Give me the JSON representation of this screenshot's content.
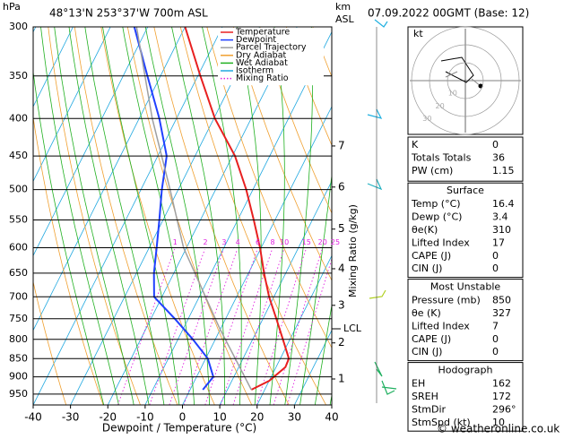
{
  "header": {
    "location": "48°13'N  253°37'W  700m  ASL",
    "date": "07.09.2022  00GMT  (Base: 12)",
    "pressure_unit": "hPa",
    "km_unit": "km",
    "km_ref": "ASL",
    "footer": "© weatheronline.co.uk"
  },
  "chart_data": {
    "type": "skewt",
    "xlabel": "Dewpoint / Temperature (°C)",
    "y2label": "Mixing Ratio (g/kg)",
    "xlim": [
      -40,
      40
    ],
    "xticks": [
      -40,
      -30,
      -20,
      -10,
      0,
      10,
      20,
      30,
      40
    ],
    "ylim": [
      983,
      300
    ],
    "log_y": true,
    "yticks": [
      300,
      350,
      400,
      450,
      500,
      550,
      600,
      650,
      700,
      750,
      800,
      850,
      900,
      950
    ],
    "series": [
      {
        "name": "Temperature",
        "color": "#e82020",
        "pressure": [
          300,
          350,
          400,
          450,
          500,
          550,
          600,
          650,
          700,
          750,
          800,
          850,
          873,
          911,
          937
        ],
        "values": [
          -50,
          -39.3,
          -29.7,
          -19.3,
          -11.8,
          -5.7,
          -0.3,
          4.2,
          8.7,
          13.6,
          18.1,
          22.3,
          22.5,
          20,
          16.4
        ]
      },
      {
        "name": "Dewpoint",
        "color": "#2040ff",
        "pressure": [
          300,
          350,
          400,
          450,
          500,
          550,
          600,
          650,
          700,
          750,
          800,
          850,
          900,
          937
        ],
        "values": [
          -63.6,
          -53.5,
          -44.6,
          -37.6,
          -34.4,
          -31,
          -28,
          -25.3,
          -22.1,
          -13.6,
          -6,
          0.6,
          4.5,
          3.4
        ]
      },
      {
        "name": "Parcel Trajectory",
        "color": "#a0a0a0",
        "pressure": [
          300,
          400,
          500,
          600,
          774,
          937
        ],
        "values": [
          -63,
          -46.5,
          -32.2,
          -20.8,
          -0.2,
          16.4
        ]
      }
    ],
    "reference_lines": [
      {
        "name": "Dry Adiabat",
        "color": "#f0a030"
      },
      {
        "name": "Wet Adiabat",
        "color": "#20b020"
      },
      {
        "name": "Isotherm",
        "color": "#20a8e0"
      },
      {
        "name": "Mixing Ratio",
        "color": "#e020e0"
      }
    ],
    "mixing_ratio_labels": [
      1,
      2,
      3,
      4,
      6,
      8,
      10,
      15,
      20,
      25
    ],
    "km_ticks": [
      1,
      2,
      3,
      4,
      5,
      6,
      7
    ],
    "km_tick_pressure": [
      906,
      809,
      719,
      641,
      566,
      496,
      436
    ],
    "lcl": {
      "label": "LCL",
      "pressure": 774
    }
  },
  "hodograph": {
    "unit": "kt",
    "rings": [
      10,
      20,
      30
    ]
  },
  "indices": {
    "rows": [
      [
        "K",
        0
      ],
      [
        "Totals Totals",
        36
      ],
      [
        "PW (cm)",
        1.15
      ]
    ]
  },
  "surface": {
    "title": "Surface",
    "rows": [
      [
        "Temp (°C)",
        16.4
      ],
      [
        "Dewp (°C)",
        3.4
      ],
      [
        "θe(K)",
        310
      ],
      [
        "Lifted Index",
        17
      ],
      [
        "CAPE (J)",
        0
      ],
      [
        "CIN (J)",
        0
      ]
    ]
  },
  "most_unstable": {
    "title": "Most Unstable",
    "rows": [
      [
        "Pressure (mb)",
        850
      ],
      [
        "θe (K)",
        327
      ],
      [
        "Lifted Index",
        7
      ],
      [
        "CAPE (J)",
        0
      ],
      [
        "CIN (J)",
        0
      ]
    ]
  },
  "hodo_table": {
    "title": "Hodograph",
    "rows": [
      [
        "EH",
        162
      ],
      [
        "SREH",
        172
      ],
      [
        "StmDir",
        "296°"
      ],
      [
        "StmSpd (kt)",
        10
      ]
    ]
  }
}
